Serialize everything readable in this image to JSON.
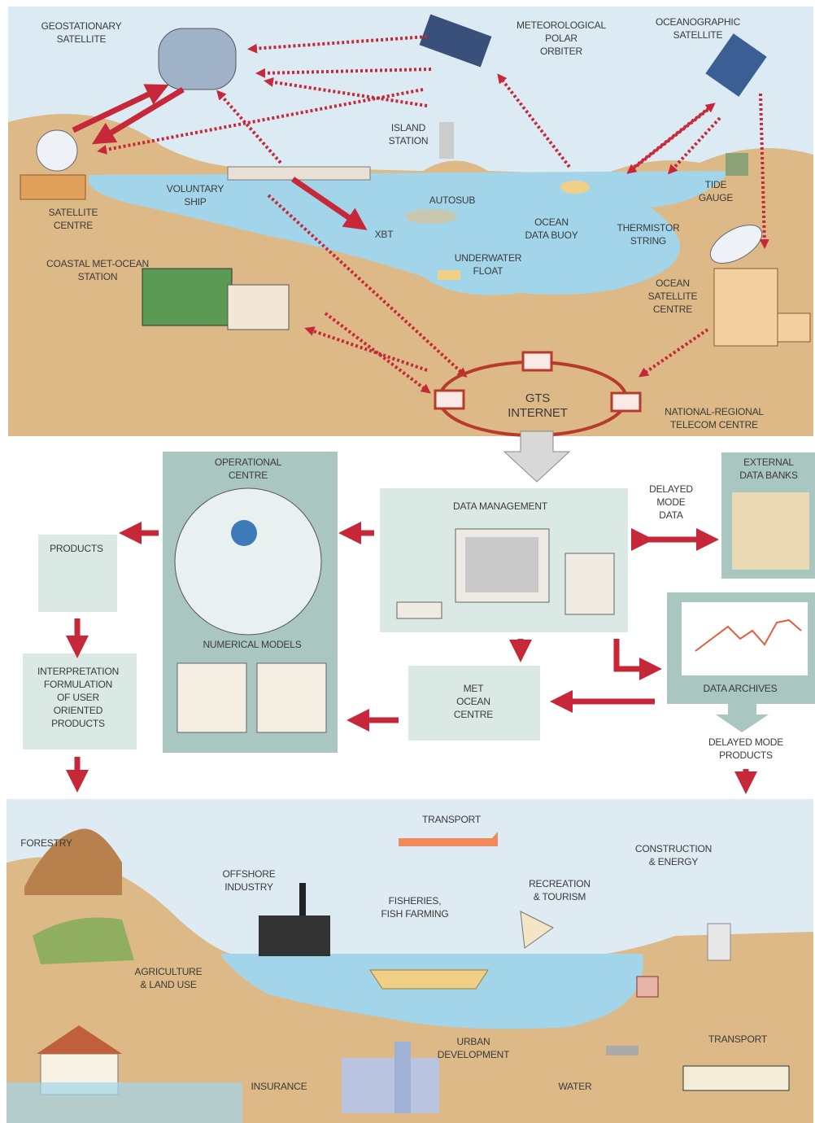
{
  "observing_system": {
    "geostationary_satellite": [
      "GEOSTATIONARY",
      "SATELLITE"
    ],
    "meteorological_polar_orbiter": [
      "METEOROLOGICAL",
      "POLAR",
      "ORBITER"
    ],
    "oceanographic_satellite": [
      "OCEANOGRAPHIC",
      "SATELLITE"
    ],
    "island_station": [
      "ISLAND",
      "STATION"
    ],
    "tide_gauge": [
      "TIDE",
      "GAUGE"
    ],
    "voluntary_ship": [
      "VOLUNTARY",
      "SHIP"
    ],
    "satellite_centre": [
      "SATELLITE",
      "CENTRE"
    ],
    "autosub": [
      "AUTOSUB"
    ],
    "ocean_data_buoy": [
      "OCEAN",
      "DATA BUOY"
    ],
    "thermistor_string": [
      "THERMISTOR",
      "STRING"
    ],
    "xbt": [
      "XBT"
    ],
    "underwater_float": [
      "UNDERWATER",
      "FLOAT"
    ],
    "coastal_station": [
      "COASTAL MET-OCEAN",
      "STATION"
    ],
    "ocean_satellite_centre": [
      "OCEAN",
      "SATELLITE",
      "CENTRE"
    ],
    "gts": [
      "GTS",
      "INTERNET"
    ],
    "telecom_centre": [
      "NATIONAL-REGIONAL",
      "TELECOM CENTRE"
    ]
  },
  "data_processing": {
    "operational_centre": [
      "OPERATIONAL",
      "CENTRE"
    ],
    "numerical_models": [
      "NUMERICAL MODELS"
    ],
    "data_management": [
      "DATA MANAGEMENT"
    ],
    "delayed_mode_data": [
      "DELAYED",
      "MODE",
      "DATA"
    ],
    "external_data_banks": [
      "EXTERNAL",
      "DATA BANKS"
    ],
    "products": [
      "PRODUCTS"
    ],
    "interpretation": [
      "INTERPRETATION",
      "FORMULATION",
      "OF USER",
      "ORIENTED",
      "PRODUCTS"
    ],
    "met_ocean_centre": [
      "MET",
      "OCEAN",
      "CENTRE"
    ],
    "data_archives": [
      "DATA ARCHIVES"
    ],
    "delayed_mode_products": [
      "DELAYED MODE",
      "PRODUCTS"
    ]
  },
  "applications": {
    "transport_air": [
      "TRANSPORT"
    ],
    "forestry": [
      "FORESTRY"
    ],
    "construction_energy": [
      "CONSTRUCTION",
      "& ENERGY"
    ],
    "offshore_industry": [
      "OFFSHORE",
      "INDUSTRY"
    ],
    "recreation_tourism": [
      "RECREATION",
      "& TOURISM"
    ],
    "fisheries": [
      "FISHERIES,",
      "FISH FARMING"
    ],
    "agriculture": [
      "AGRICULTURE",
      "& LAND USE"
    ],
    "urban_development": [
      "URBAN",
      "DEVELOPMENT"
    ],
    "transport_rail": [
      "TRANSPORT"
    ],
    "insurance": [
      "INSURANCE"
    ],
    "water": [
      "WATER"
    ]
  }
}
